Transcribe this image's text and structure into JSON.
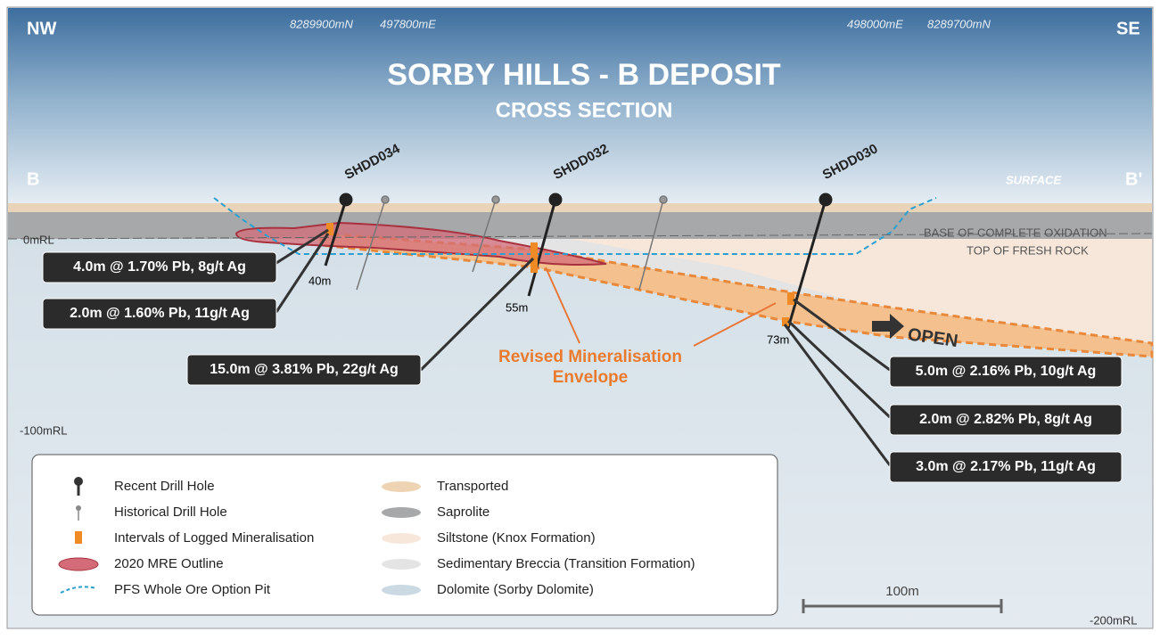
{
  "header": {
    "left_direction": "NW",
    "right_direction": "SE",
    "coords": [
      "8289900mN",
      "497800mE",
      "498000mE",
      "8289700mN"
    ],
    "title": "SORBY HILLS -  B DEPOSIT",
    "subtitle": "CROSS SECTION"
  },
  "section": {
    "start": "B",
    "end": "B'",
    "surface": "SURFACE",
    "levels": [
      "0mRL",
      "-100mRL",
      "-200mRL"
    ],
    "oxidation": "BASE OF COMPLETE OXIDATION",
    "fresh_rock": "TOP OF FRESH ROCK"
  },
  "drill_holes": [
    {
      "name": "SHDD034",
      "depth": "40m"
    },
    {
      "name": "SHDD032",
      "depth": "55m"
    },
    {
      "name": "SHDD030",
      "depth": "73m"
    }
  ],
  "intervals": [
    "4.0m @ 1.70% Pb, 8g/t Ag",
    "2.0m @ 1.60% Pb, 11g/t Ag",
    "15.0m @ 3.81% Pb, 22g/t Ag",
    "5.0m @ 2.16% Pb, 10g/t Ag",
    "2.0m @ 2.82% Pb, 8g/t Ag",
    "3.0m @ 2.17% Pb, 11g/t Ag"
  ],
  "annotations": {
    "envelope": [
      "Revised Mineralisation",
      "Envelope"
    ],
    "open": "OPEN"
  },
  "legend": {
    "items": [
      "Recent Drill Hole",
      "Historical Drill Hole",
      "Intervals of Logged Mineralisation",
      "2020 MRE Outline",
      "PFS Whole Ore Option Pit",
      "Transported",
      "Saprolite",
      "Siltstone (Knox Formation)",
      "Sedimentary Breccia (Transition Formation)",
      "Dolomite (Sorby Dolomite)"
    ]
  },
  "scale_bar": "100m"
}
